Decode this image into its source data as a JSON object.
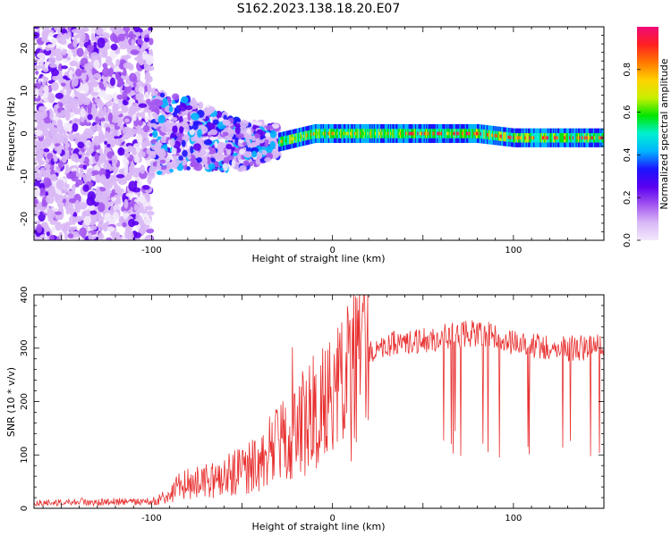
{
  "title": "S162.2023.138.18.20.E07",
  "colors": {
    "snr_line": "#e83030",
    "axis": "#000000",
    "colormap": [
      "#f2e9fb",
      "#d9b8f6",
      "#a355f0",
      "#5b00f0",
      "#1c14ff",
      "#00b4ff",
      "#00f0d2",
      "#00e600",
      "#c8f000",
      "#ffd200",
      "#ff7800",
      "#ff2020",
      "#f00a78"
    ]
  },
  "chart_data": [
    {
      "type": "heatmap",
      "title": "S162.2023.138.18.20.E07",
      "xlabel": "Height of straight line (km)",
      "ylabel": "Frequency (Hz)",
      "xlim": [
        -165,
        150
      ],
      "ylim": [
        -25,
        25
      ],
      "xticks": [
        "-100",
        "0",
        "100"
      ],
      "yticks": [
        "20",
        "10",
        "0",
        "-10",
        "-20"
      ],
      "grid": false,
      "colorbar": {
        "label": "Normalized spectral amplitude",
        "range": [
          0.0,
          1.0
        ],
        "ticks": [
          "0.0",
          "0.2",
          "0.4",
          "0.6",
          "0.8"
        ]
      },
      "description_regions": [
        {
          "x_range": [
            -165,
            -100
          ],
          "freq_spread_hz": 25,
          "amplitude": "noise 0.0-0.3"
        },
        {
          "x_range": [
            -100,
            -30
          ],
          "freq_spread_hz": 8,
          "amplitude": "0.1-0.5"
        },
        {
          "x_range": [
            -30,
            150
          ],
          "freq_center_hz": 0,
          "freq_spread_hz": 2,
          "amplitude": "0.4-1.0"
        }
      ],
      "ridge": {
        "x": [
          -100,
          -80,
          -60,
          -50,
          -40,
          -30,
          -20,
          -10,
          0,
          20,
          40,
          60,
          80,
          100,
          110,
          120,
          150
        ],
        "freq_hz": [
          0,
          0,
          -2,
          -3,
          -2,
          -2,
          -1,
          0,
          0,
          0,
          0,
          0,
          0,
          -1,
          -1,
          -1,
          -1
        ]
      }
    },
    {
      "type": "line",
      "xlabel": "Height of straight line (km)",
      "ylabel": "SNR (10 * v/v)",
      "xlim": [
        -165,
        150
      ],
      "ylim": [
        0,
        400
      ],
      "xticks": [
        "-100",
        "0",
        "100"
      ],
      "yticks": [
        "400",
        "300",
        "200",
        "100",
        "0"
      ],
      "grid": false,
      "series": [
        {
          "x": [
            -165,
            -140,
            -120,
            -100,
            -90,
            -85,
            -80,
            -70,
            -60,
            -50,
            -40,
            -30,
            -20,
            -10,
            0,
            5,
            10,
            15,
            20,
            30,
            40,
            50,
            60,
            70,
            80,
            90,
            100,
            110,
            120,
            130,
            140,
            150
          ],
          "values": [
            10,
            12,
            12,
            12,
            25,
            40,
            45,
            50,
            60,
            70,
            90,
            120,
            150,
            190,
            210,
            220,
            240,
            260,
            290,
            305,
            315,
            315,
            320,
            325,
            330,
            320,
            310,
            305,
            300,
            300,
            300,
            305
          ]
        }
      ]
    }
  ]
}
